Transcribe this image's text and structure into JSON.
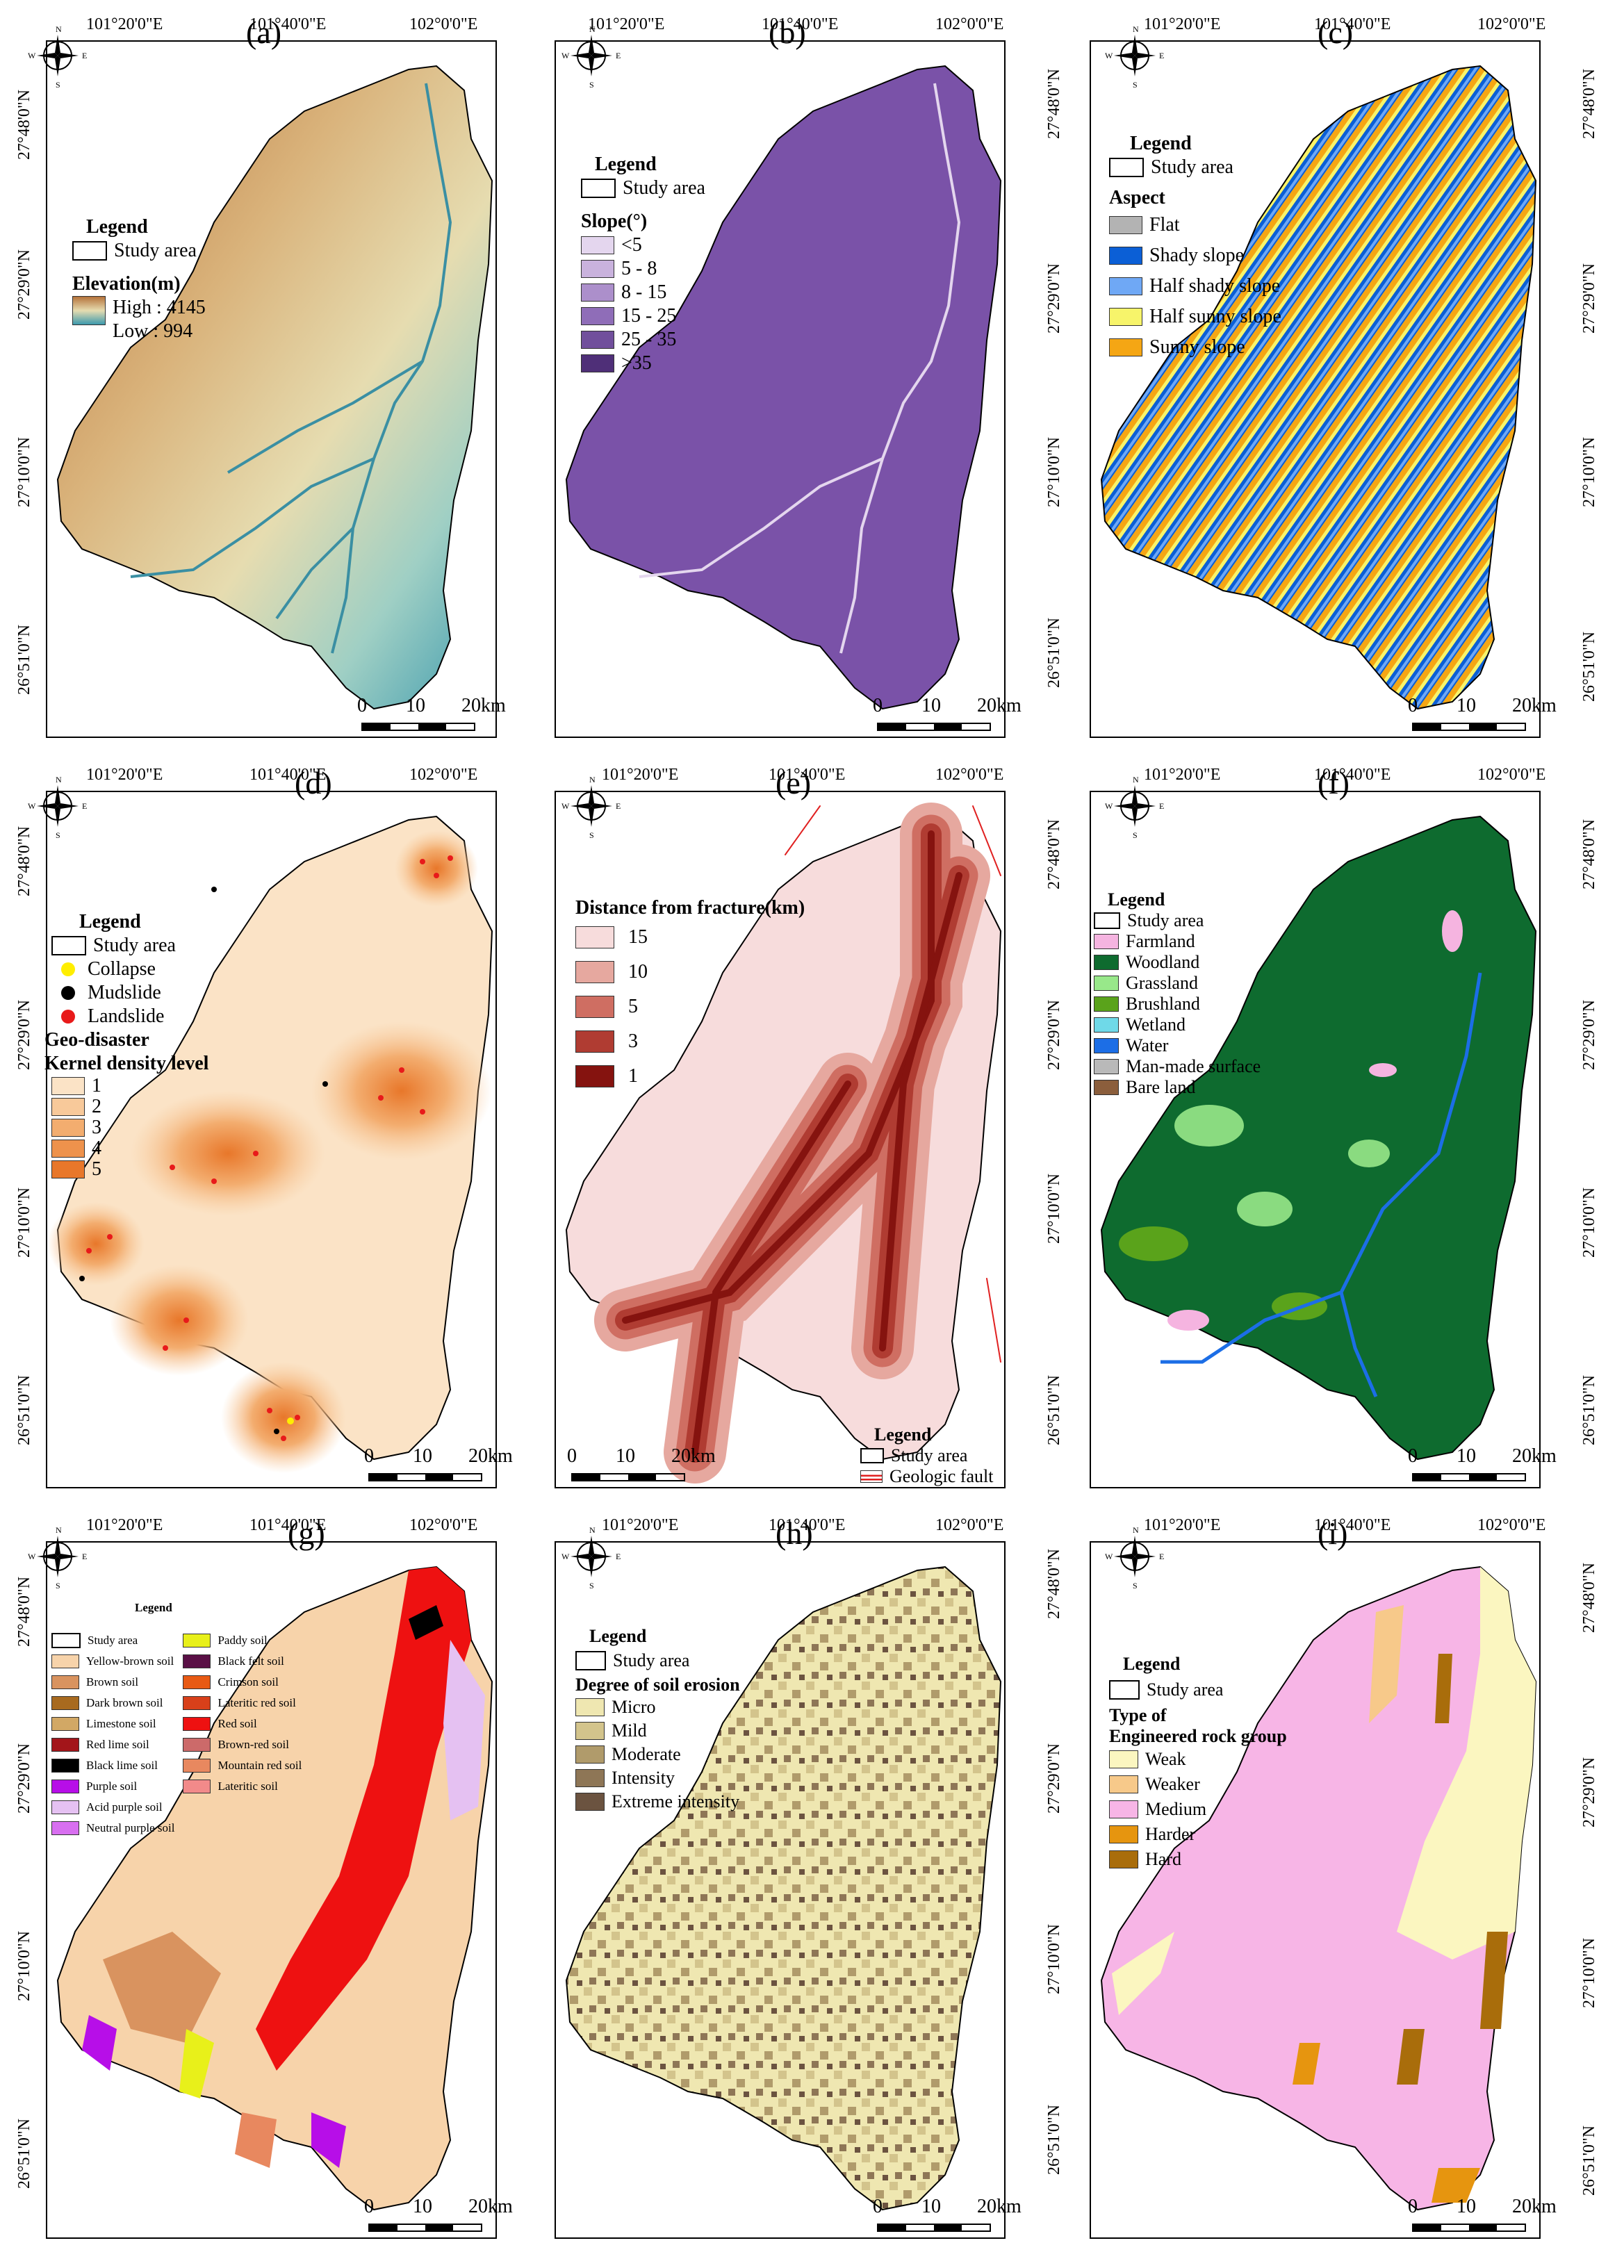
{
  "coords": {
    "lon_ticks": [
      "101°20'0\"E",
      "101°40'0\"E",
      "102°0'0\"E"
    ],
    "lat_ticks": [
      "27°48'0\"N",
      "27°29'0\"N",
      "27°10'0\"N",
      "26°51'0\"N"
    ]
  },
  "compass": {
    "n": "N",
    "s": "S",
    "e": "E",
    "w": "W"
  },
  "scale": {
    "zero": "0",
    "mid": "10",
    "end": "20km"
  },
  "panels": {
    "a": {
      "label": "(a)",
      "legend_title": "Legend",
      "study_area": "Study area",
      "var_title": "Elevation(m)",
      "high": "High : 4145",
      "low": "Low : 994"
    },
    "b": {
      "label": "(b)",
      "legend_title": "Legend",
      "study_area": "Study area",
      "var_title": "Slope(°)",
      "classes": [
        {
          "text": "<5",
          "color": "#e4d6ee"
        },
        {
          "text": "5 - 8",
          "color": "#c9b2dd"
        },
        {
          "text": "8 - 15",
          "color": "#ac8fcb"
        },
        {
          "text": "15 - 25",
          "color": "#8f6db8"
        },
        {
          "text": "25 - 35",
          "color": "#714f9c"
        },
        {
          "text": ">35",
          "color": "#4f2f78"
        }
      ]
    },
    "c": {
      "label": "(c)",
      "legend_title": "Legend",
      "study_area": "Study area",
      "var_title": "Aspect",
      "classes": [
        {
          "text": "Flat",
          "color": "#b3b3b3"
        },
        {
          "text": "Shady slope",
          "color": "#0b5fd6"
        },
        {
          "text": "Half shady slope",
          "color": "#6fa8f5"
        },
        {
          "text": "Half sunny slope",
          "color": "#f7f46a"
        },
        {
          "text": "Sunny slope",
          "color": "#f5a614"
        }
      ]
    },
    "d": {
      "label": "(d)",
      "legend_title": "Legend",
      "study_area": "Study area",
      "points": [
        {
          "text": "Collapse",
          "color": "#ffee00"
        },
        {
          "text": "Mudslide",
          "color": "#000000"
        },
        {
          "text": "Landslide",
          "color": "#e81a1a"
        }
      ],
      "var_title": "Geo-disaster",
      "var_title2": "Kernel density level",
      "classes": [
        {
          "text": "1",
          "color": "#fbe3c6"
        },
        {
          "text": "2",
          "color": "#f8c99a"
        },
        {
          "text": "3",
          "color": "#f3ad6f"
        },
        {
          "text": "4",
          "color": "#ee924c"
        },
        {
          "text": "5",
          "color": "#e8772a"
        }
      ]
    },
    "e": {
      "label": "(e)",
      "var_title": "Distance from fracture(km)",
      "classes": [
        {
          "text": "15",
          "color": "#f7dcdc"
        },
        {
          "text": "10",
          "color": "#e6a89f"
        },
        {
          "text": "5",
          "color": "#cf6e62"
        },
        {
          "text": "3",
          "color": "#b03c32"
        },
        {
          "text": "1",
          "color": "#85130f"
        }
      ],
      "legend_title": "Legend",
      "study_area": "Study area",
      "fault": "Geologic fault"
    },
    "f": {
      "label": "(f)",
      "legend_title": "Legend",
      "study_area": "Study area",
      "classes": [
        {
          "text": "Farmland",
          "color": "#f5b4e0"
        },
        {
          "text": "Woodland",
          "color": "#0e6b2f"
        },
        {
          "text": "Grassland",
          "color": "#98e88a"
        },
        {
          "text": "Brushland",
          "color": "#5aa31b"
        },
        {
          "text": "Wetland",
          "color": "#6fd9e8"
        },
        {
          "text": "Water",
          "color": "#1c6ee6"
        },
        {
          "text": "Man-made surface",
          "color": "#b9b9b9"
        },
        {
          "text": "Bare land",
          "color": "#8b5e3c"
        }
      ]
    },
    "g": {
      "label": "(g)",
      "legend_title": "Legend",
      "col1": [
        {
          "text": "Study area",
          "color": "#ffffff"
        },
        {
          "text": "Yellow-brown soil",
          "color": "#f7d3aa"
        },
        {
          "text": "Brown soil",
          "color": "#d9935f"
        },
        {
          "text": "Dark brown soil",
          "color": "#a86a1f"
        },
        {
          "text": "Limestone soil",
          "color": "#d2a865"
        },
        {
          "text": "Red lime soil",
          "color": "#a3151a"
        },
        {
          "text": "Black lime soil",
          "color": "#000000"
        },
        {
          "text": "Purple soil",
          "color": "#b70ee8"
        },
        {
          "text": "Acid purple soil",
          "color": "#e5c1f2"
        },
        {
          "text": "Neutral purple soil",
          "color": "#d86ff0"
        }
      ],
      "col2": [
        {
          "text": "Paddy soil",
          "color": "#e8f01a"
        },
        {
          "text": "Black felt soil",
          "color": "#5a1046"
        },
        {
          "text": "Crimson soil",
          "color": "#e85a14"
        },
        {
          "text": "Lateritic red soil",
          "color": "#d8401a"
        },
        {
          "text": "Red soil",
          "color": "#ee1111"
        },
        {
          "text": "Brown-red soil",
          "color": "#cc6a6a"
        },
        {
          "text": "Mountain red soil",
          "color": "#e8885f"
        },
        {
          "text": "Lateritic soil",
          "color": "#f28a8a"
        }
      ]
    },
    "h": {
      "label": "(h)",
      "legend_title": "Legend",
      "study_area": "Study area",
      "var_title": "Degree of soil erosion",
      "classes": [
        {
          "text": "Micro",
          "color": "#efe7b1"
        },
        {
          "text": "Mild",
          "color": "#d3c48c"
        },
        {
          "text": "Moderate",
          "color": "#b09b6b"
        },
        {
          "text": "Intensity",
          "color": "#8e7656"
        },
        {
          "text": "Extreme intensity",
          "color": "#6b5340"
        }
      ]
    },
    "i": {
      "label": "(i)",
      "legend_title": "Legend",
      "study_area": "Study area",
      "var_title": "Type of",
      "var_title2": "Engineered rock group",
      "classes": [
        {
          "text": "Weak",
          "color": "#fbf6c0"
        },
        {
          "text": "Weaker",
          "color": "#f7c98a"
        },
        {
          "text": "Medium",
          "color": "#f7b5e6"
        },
        {
          "text": "Harder",
          "color": "#e6950f"
        },
        {
          "text": "Hard",
          "color": "#a96d0b"
        }
      ]
    }
  }
}
